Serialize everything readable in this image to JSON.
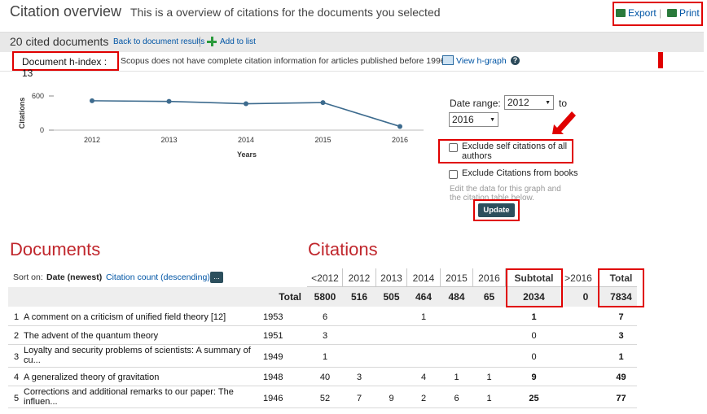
{
  "header": {
    "title": "Citation overview",
    "subtitle": "This is a overview of citations for the documents you selected",
    "export_label": "Export",
    "print_label": "Print",
    "separator": "|"
  },
  "toolbar": {
    "cited_count": "20 cited documents",
    "back_link": "Back to document results",
    "add_to_list": "Add to list"
  },
  "info": {
    "hindex": "Document h-index : 13",
    "note": "Scopus does not have complete citation information for articles published before 1996.",
    "view_hgraph": "View h-graph",
    "help": "?"
  },
  "chart_data": {
    "type": "line",
    "x": [
      "2012",
      "2013",
      "2014",
      "2015",
      "2016"
    ],
    "series": [
      {
        "values": [
          516,
          505,
          464,
          484,
          65
        ]
      }
    ],
    "xlabel": "Years",
    "ylabel": "Citations",
    "yticks": [
      "600",
      "0"
    ],
    "ylim": [
      0,
      600
    ],
    "grid": false,
    "line_color": "#3d6b8e"
  },
  "controls": {
    "date_range_label": "Date range:",
    "from_year": "2012",
    "to_label": "to",
    "to_year": "2016",
    "exclude_self": "Exclude self citations of all authors",
    "exclude_books": "Exclude Citations from books",
    "hint_line1": "Edit the data for this graph and",
    "hint_line2": "the citation table below.",
    "update_label": "Update"
  },
  "sections": {
    "documents": "Documents",
    "citations": "Citations"
  },
  "sort": {
    "label": "Sort on:",
    "date": "Date (newest)",
    "citation_count": "Citation count (descending)",
    "more": "..."
  },
  "table": {
    "columns": [
      "<2012",
      "2012",
      "2013",
      "2014",
      "2015",
      "2016",
      "Subtotal",
      ">2016",
      "Total"
    ],
    "total_label": "Total",
    "totals": [
      "5800",
      "516",
      "505",
      "464",
      "484",
      "65",
      "2034",
      "0",
      "7834"
    ],
    "rows": [
      {
        "num": "1",
        "title1": "A comment on a criticism of unified field theory [12]",
        "title2": "",
        "year": "1953",
        "cells": [
          "6",
          "",
          "",
          "1",
          "",
          "",
          "1",
          "",
          "7"
        ]
      },
      {
        "num": "2",
        "title1": "The advent of the quantum theory",
        "title2": "",
        "year": "1951",
        "cells": [
          "3",
          "",
          "",
          "",
          "",
          "",
          "0",
          "",
          "3"
        ]
      },
      {
        "num": "3",
        "title1": "Loyalty and security problems of scientists: A summary of",
        "title2": "cu...",
        "year": "1949",
        "cells": [
          "1",
          "",
          "",
          "",
          "",
          "",
          "0",
          "",
          "1"
        ]
      },
      {
        "num": "4",
        "title1": "A generalized theory of gravitation",
        "title2": "",
        "year": "1948",
        "cells": [
          "40",
          "3",
          "",
          "4",
          "1",
          "1",
          "9",
          "",
          "49"
        ]
      },
      {
        "num": "5",
        "title1": "Corrections and additional remarks to our paper: The",
        "title2": "influen...",
        "year": "1946",
        "cells": [
          "52",
          "7",
          "9",
          "2",
          "6",
          "1",
          "25",
          "",
          "77"
        ]
      }
    ]
  },
  "colors": {
    "highlight": "#e00000",
    "section_title": "#c0262c",
    "link": "#0055a5",
    "button": "#2c4f5d"
  }
}
